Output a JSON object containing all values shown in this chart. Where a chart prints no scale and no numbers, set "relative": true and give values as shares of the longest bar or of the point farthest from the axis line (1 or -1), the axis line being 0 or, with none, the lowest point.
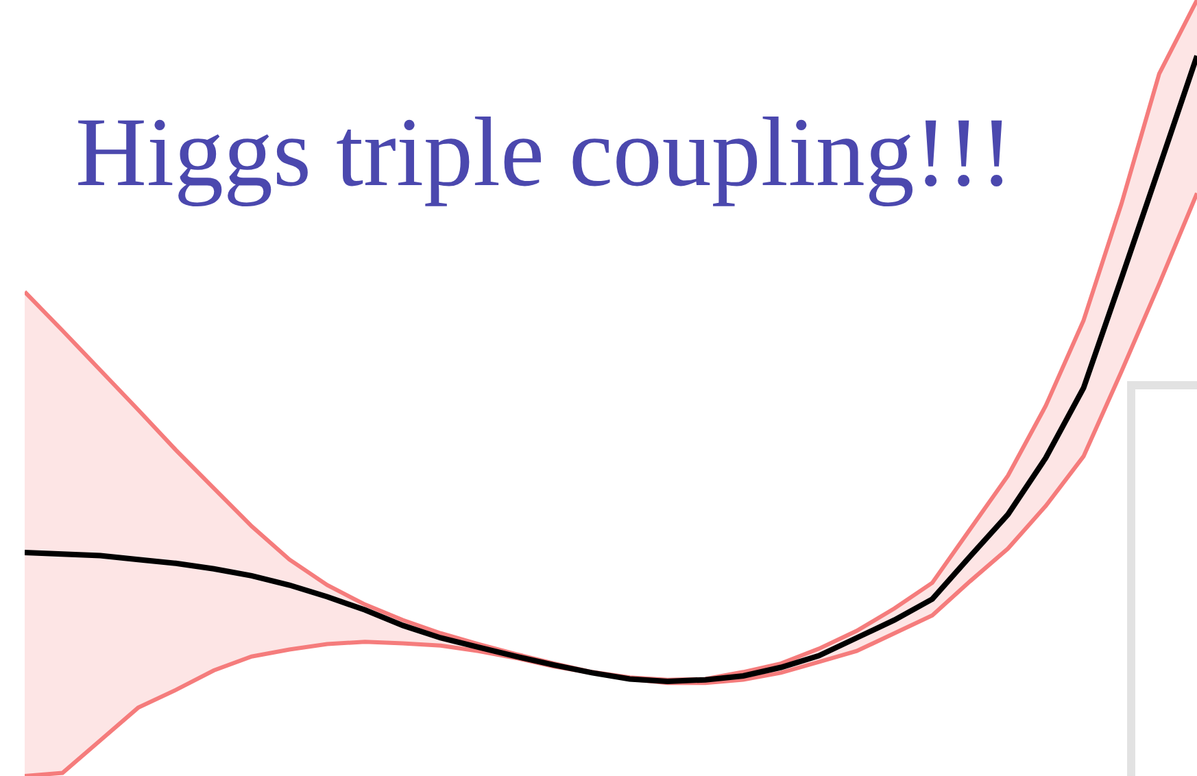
{
  "chart_data": {
    "type": "line",
    "title": "Higgs triple coupling!!!",
    "relative": true,
    "categories": [
      null,
      null,
      null,
      null,
      null,
      null,
      null,
      null,
      null,
      null,
      null,
      null,
      null,
      null,
      null,
      null,
      null,
      null,
      null,
      null,
      null,
      null,
      null,
      null,
      null,
      null,
      null,
      null,
      null,
      null,
      null,
      null
    ],
    "series": [
      {
        "color": "#f57c7c",
        "values": [
          0.624,
          0.574,
          0.523,
          0.472,
          0.42,
          0.371,
          0.322,
          0.279,
          0.246,
          0.221,
          0.201,
          0.184,
          0.17,
          0.157,
          0.145,
          0.134,
          0.127,
          0.124,
          0.125,
          0.134,
          0.145,
          0.164,
          0.187,
          0.216,
          0.249,
          0.318,
          0.387,
          0.477,
          0.587,
          0.737,
          0.905,
          1.0
        ]
      },
      {
        "color": "#f57c7c",
        "values": [
          0.0,
          0.004,
          0.046,
          0.088,
          0.111,
          0.136,
          0.154,
          0.163,
          0.17,
          0.173,
          0.171,
          0.168,
          0.161,
          0.152,
          0.141,
          0.133,
          0.125,
          0.12,
          0.12,
          0.124,
          0.133,
          0.147,
          0.161,
          0.184,
          0.207,
          0.251,
          0.293,
          0.348,
          0.412,
          0.521,
          0.634,
          0.751
        ]
      },
      {
        "color": "#000000",
        "values": [
          0.288,
          0.286,
          0.284,
          0.279,
          0.274,
          0.267,
          0.258,
          0.246,
          0.231,
          0.214,
          0.194,
          0.178,
          0.166,
          0.154,
          0.143,
          0.133,
          0.125,
          0.122,
          0.124,
          0.129,
          0.14,
          0.155,
          0.178,
          0.201,
          0.228,
          0.283,
          0.337,
          0.41,
          0.5,
          0.641,
          0.784,
          0.928
        ],
        "lower": [
          0.0,
          0.004,
          0.046,
          0.088,
          0.111,
          0.136,
          0.154,
          0.163,
          0.17,
          0.173,
          0.171,
          0.168,
          0.161,
          0.152,
          0.141,
          0.133,
          0.125,
          0.12,
          0.12,
          0.124,
          0.133,
          0.147,
          0.161,
          0.184,
          0.207,
          0.251,
          0.293,
          0.348,
          0.412,
          0.521,
          0.634,
          0.751
        ],
        "upper": [
          0.624,
          0.574,
          0.523,
          0.472,
          0.42,
          0.371,
          0.322,
          0.279,
          0.246,
          0.221,
          0.201,
          0.184,
          0.17,
          0.157,
          0.145,
          0.134,
          0.127,
          0.124,
          0.125,
          0.134,
          0.145,
          0.164,
          0.187,
          0.216,
          0.249,
          0.318,
          0.387,
          0.477,
          0.587,
          0.737,
          0.905,
          1.0
        ]
      }
    ]
  }
}
